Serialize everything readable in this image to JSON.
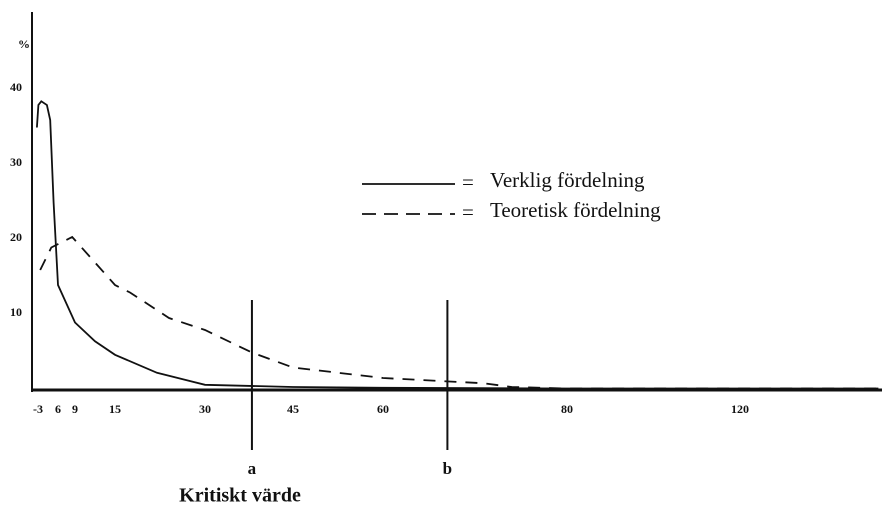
{
  "chart_data": {
    "type": "line",
    "ylabel": "%",
    "xlim": [
      -4,
      152
    ],
    "ylim": [
      0,
      50
    ],
    "xticks": [
      -3,
      6,
      9,
      15,
      30,
      45,
      60,
      80,
      120
    ],
    "yticks": [
      10,
      20,
      30,
      40
    ],
    "legend_separator": "=",
    "series": [
      {
        "name": "Verklig fördelning",
        "color": "#111111",
        "dash": "solid",
        "x": [
          -3.5,
          -2.8,
          -1.5,
          1,
          2.5,
          4,
          6,
          9,
          12,
          15,
          22,
          30,
          45,
          60,
          80,
          120,
          152
        ],
        "values": [
          35,
          38,
          38.5,
          38,
          36,
          25,
          14,
          9,
          6.5,
          4.7,
          2.3,
          0.7,
          0.4,
          0.3,
          0.2,
          0.2,
          0.2
        ]
      },
      {
        "name": "Teoretisk fördelning",
        "color": "#111111",
        "dash": "dashed",
        "x": [
          -2,
          3,
          8.5,
          12,
          15,
          17.5,
          24,
          30,
          38,
          45,
          60,
          71,
          74,
          80,
          120,
          152
        ],
        "values": [
          16,
          19,
          20.4,
          17,
          14,
          13,
          9.6,
          8,
          5,
          3,
          1.6,
          0.9,
          0.4,
          0.2,
          0.2,
          0.2
        ]
      }
    ],
    "markers": [
      {
        "label": "a",
        "x": 38
      },
      {
        "label": "b",
        "x": 67
      }
    ],
    "annotation": "Kritiskt värde"
  }
}
